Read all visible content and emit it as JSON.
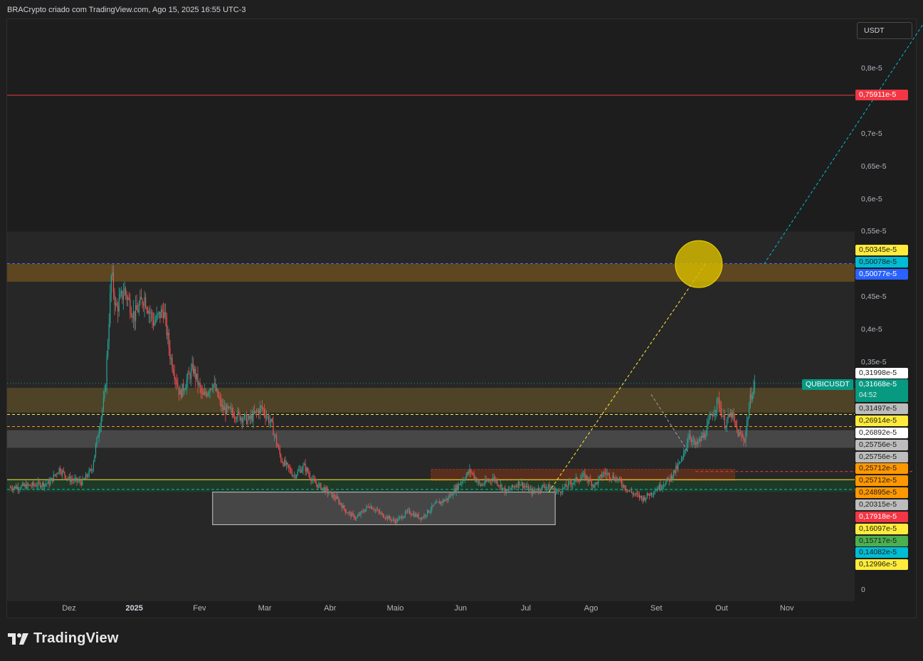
{
  "header": {
    "caption": "BRACrypto criado com TradingView.com, Ago 15, 2025 16:55 UTC-3"
  },
  "brand": {
    "icon": "tradingview-logo-icon",
    "text": "TradingView"
  },
  "currency_label": "USDT",
  "symbol_label": "QUBICUSDT",
  "current_price": {
    "value": "0,31668e-5",
    "countdown": "04:52",
    "color": "#089981"
  },
  "colors": {
    "up": "#26a69a",
    "down": "#ef5350",
    "red_line": "#f23645",
    "yellow": "#ffeb3b",
    "cyan": "#00bcd4",
    "orange": "#ff9800",
    "zone_orange": "#5e4620",
    "zone_olive": "#4e4327",
    "zone_green": "#1e3a26",
    "zone_grey": "#474747"
  },
  "chart_data": {
    "type": "candlestick",
    "symbol": "QUBICUSDT",
    "ylim": [
      0,
      0.88
    ],
    "y_unit": "e-5",
    "y_ticks": [
      {
        "value": 0,
        "label": "0"
      },
      {
        "value": 0.35,
        "label": "0,35e-5"
      },
      {
        "value": 0.4,
        "label": "0,4e-5"
      },
      {
        "value": 0.45,
        "label": "0,45e-5"
      },
      {
        "value": 0.55,
        "label": "0,55e-5"
      },
      {
        "value": 0.6,
        "label": "0,6e-5"
      },
      {
        "value": 0.65,
        "label": "0,65e-5"
      },
      {
        "value": 0.7,
        "label": "0,7e-5"
      },
      {
        "value": 0.8,
        "label": "0,8e-5"
      }
    ],
    "x_ticks": [
      {
        "label": "Dez",
        "bold": false
      },
      {
        "label": "2025",
        "bold": true
      },
      {
        "label": "Fev",
        "bold": false
      },
      {
        "label": "Mar",
        "bold": false
      },
      {
        "label": "Abr",
        "bold": false
      },
      {
        "label": "Maio",
        "bold": false
      },
      {
        "label": "Jun",
        "bold": false
      },
      {
        "label": "Jul",
        "bold": false
      },
      {
        "label": "Ago",
        "bold": false
      },
      {
        "label": "Set",
        "bold": false
      },
      {
        "label": "Out",
        "bold": false
      },
      {
        "label": "Nov",
        "bold": false
      }
    ],
    "x_domain_months": [
      0,
      12.5
    ],
    "price_path": [
      [
        -0.9,
        0.157
      ],
      [
        -0.6,
        0.16
      ],
      [
        -0.3,
        0.164
      ],
      [
        -0.15,
        0.186
      ],
      [
        0.0,
        0.17
      ],
      [
        0.2,
        0.165
      ],
      [
        0.35,
        0.185
      ],
      [
        0.55,
        0.3
      ],
      [
        0.65,
        0.485
      ],
      [
        0.72,
        0.43
      ],
      [
        0.85,
        0.46
      ],
      [
        1.0,
        0.42
      ],
      [
        1.15,
        0.45
      ],
      [
        1.3,
        0.41
      ],
      [
        1.45,
        0.43
      ],
      [
        1.55,
        0.36
      ],
      [
        1.7,
        0.3
      ],
      [
        1.9,
        0.34
      ],
      [
        2.05,
        0.295
      ],
      [
        2.2,
        0.318
      ],
      [
        2.35,
        0.278
      ],
      [
        2.55,
        0.27
      ],
      [
        2.75,
        0.26
      ],
      [
        2.95,
        0.28
      ],
      [
        3.1,
        0.255
      ],
      [
        3.25,
        0.2
      ],
      [
        3.45,
        0.175
      ],
      [
        3.6,
        0.19
      ],
      [
        3.75,
        0.165
      ],
      [
        3.9,
        0.155
      ],
      [
        4.1,
        0.14
      ],
      [
        4.25,
        0.12
      ],
      [
        4.4,
        0.11
      ],
      [
        4.6,
        0.13
      ],
      [
        4.8,
        0.115
      ],
      [
        5.0,
        0.105
      ],
      [
        5.2,
        0.12
      ],
      [
        5.4,
        0.11
      ],
      [
        5.6,
        0.13
      ],
      [
        5.8,
        0.14
      ],
      [
        6.0,
        0.165
      ],
      [
        6.15,
        0.183
      ],
      [
        6.3,
        0.16
      ],
      [
        6.5,
        0.172
      ],
      [
        6.7,
        0.15
      ],
      [
        6.9,
        0.165
      ],
      [
        7.1,
        0.15
      ],
      [
        7.3,
        0.16
      ],
      [
        7.5,
        0.15
      ],
      [
        7.7,
        0.165
      ],
      [
        7.9,
        0.175
      ],
      [
        8.05,
        0.16
      ],
      [
        8.2,
        0.18
      ],
      [
        8.4,
        0.17
      ],
      [
        8.6,
        0.15
      ],
      [
        8.8,
        0.14
      ],
      [
        9.0,
        0.155
      ],
      [
        9.2,
        0.17
      ],
      [
        9.4,
        0.2
      ],
      [
        9.5,
        0.24
      ],
      [
        9.6,
        0.22
      ],
      [
        9.75,
        0.24
      ],
      [
        9.85,
        0.27
      ],
      [
        9.95,
        0.29
      ],
      [
        10.05,
        0.255
      ],
      [
        10.15,
        0.27
      ],
      [
        10.25,
        0.24
      ],
      [
        10.35,
        0.23
      ],
      [
        10.45,
        0.3
      ],
      [
        10.52,
        0.317
      ]
    ],
    "zones": [
      {
        "name": "resistance-zone-upper",
        "from": 0.473,
        "to": 0.5,
        "x_end": "axis"
      },
      {
        "name": "supply-zone",
        "from": 0.272,
        "to": 0.31,
        "x_end": "axis"
      },
      {
        "name": "grey-zone",
        "from": 0.218,
        "to": 0.245,
        "x_end": "axis"
      },
      {
        "name": "green-zone",
        "from": 0.15,
        "to": 0.17,
        "x_end": "axis"
      },
      {
        "name": "orange-box",
        "from": 0.168,
        "to": 0.185,
        "x_start": 5.55,
        "x_end": 10.2
      },
      {
        "name": "accumulation-box",
        "from": 0.1,
        "to": 0.15,
        "x_start": 2.2,
        "x_end": 7.45
      }
    ],
    "levels": [
      {
        "name": "red-resistance-line",
        "value": 0.75911,
        "style": "solid",
        "color": "#f23645"
      },
      {
        "name": "blue-dashed-line",
        "value": 0.50077,
        "style": "dashed",
        "color": "#5b6cf0"
      },
      {
        "name": "yellow-dashed-line-upper",
        "value": 0.26914,
        "style": "dashed",
        "color": "#ffeb3b"
      },
      {
        "name": "orange-dashed-line",
        "value": 0.25056,
        "style": "dashed",
        "color": "#ff9800"
      },
      {
        "name": "red-dashed-line",
        "value": 0.1815,
        "style": "dashed",
        "color": "#f23645",
        "x_start": 9.6
      },
      {
        "name": "yellow-solid-line",
        "value": 0.16917,
        "style": "solid",
        "color": "#ffeb3b"
      },
      {
        "name": "cyan-dashed-line",
        "value": 0.15407,
        "style": "dashed",
        "color": "#00bcd4"
      }
    ],
    "projections": [
      {
        "name": "yellow-projection-line",
        "from": [
          7.35,
          0.15
        ],
        "to": [
          9.75,
          0.5
        ],
        "color": "#ffeb3b"
      },
      {
        "name": "cyan-projection-line",
        "from": [
          10.65,
          0.5
        ],
        "to": [
          13.1,
          0.87
        ],
        "color": "#00bcd4"
      },
      {
        "name": "white-dashed-projection",
        "from": [
          8.92,
          0.3
        ],
        "to": [
          9.5,
          0.21
        ],
        "color": "#9e9e9e"
      }
    ],
    "target_circle": {
      "x": 9.65,
      "y": 0.5,
      "r_px": 33
    },
    "price_tags": [
      {
        "label": "0,75911e-5",
        "value": 0.7591,
        "bg": "#f23645",
        "fg": "#ffffff"
      },
      {
        "label": "0,50345e-5",
        "value": 0.5211,
        "bg": "#ffeb3b",
        "fg": "#1d1d1d"
      },
      {
        "label": "0,50078e-5",
        "value": 0.5027,
        "bg": "#00bcd4",
        "fg": "#1d1d1d"
      },
      {
        "label": "0,50077e-5",
        "value": 0.4843,
        "bg": "#2962ff",
        "fg": "#ffffff"
      },
      {
        "label": "0,31998e-5",
        "value": 0.3323,
        "bg": "#ffffff",
        "fg": "#1d1d1d"
      },
      {
        "label": "0,31497e-5",
        "value": 0.278,
        "bg": "#bdbdbd",
        "fg": "#1d1d1d"
      },
      {
        "label": "0,26914e-5",
        "value": 0.2594,
        "bg": "#ffeb3b",
        "fg": "#1d1d1d"
      },
      {
        "label": "0,26892e-5",
        "value": 0.241,
        "bg": "#ffffff",
        "fg": "#1d1d1d"
      },
      {
        "label": "0,25756e-5",
        "value": 0.2226,
        "bg": "#bdbdbd",
        "fg": "#1d1d1d"
      },
      {
        "label": "0,25756e-5",
        "value": 0.2042,
        "bg": "#bdbdbd",
        "fg": "#1d1d1d"
      },
      {
        "label": "0,25712e-5",
        "value": 0.1858,
        "bg": "#ff9800",
        "fg": "#1d1d1d"
      },
      {
        "label": "0,25712e-5",
        "value": 0.1673,
        "bg": "#ff9800",
        "fg": "#1d1d1d"
      },
      {
        "label": "0,24895e-5",
        "value": 0.1489,
        "bg": "#ff9800",
        "fg": "#1d1d1d"
      },
      {
        "label": "0,20315e-5",
        "value": 0.1305,
        "bg": "#bdbdbd",
        "fg": "#1d1d1d"
      },
      {
        "label": "0,17918e-5",
        "value": 0.1121,
        "bg": "#f23645",
        "fg": "#ffffff"
      },
      {
        "label": "0,16097e-5",
        "value": 0.0937,
        "bg": "#ffeb3b",
        "fg": "#1d1d1d"
      },
      {
        "label": "0,15717e-5",
        "value": 0.0753,
        "bg": "#4caf50",
        "fg": "#1d1d1d"
      },
      {
        "label": "0,14082e-5",
        "value": 0.0569,
        "bg": "#00bcd4",
        "fg": "#1d1d1d"
      },
      {
        "label": "0,12996e-5",
        "value": 0.0385,
        "bg": "#ffeb3b",
        "fg": "#1d1d1d"
      }
    ]
  }
}
